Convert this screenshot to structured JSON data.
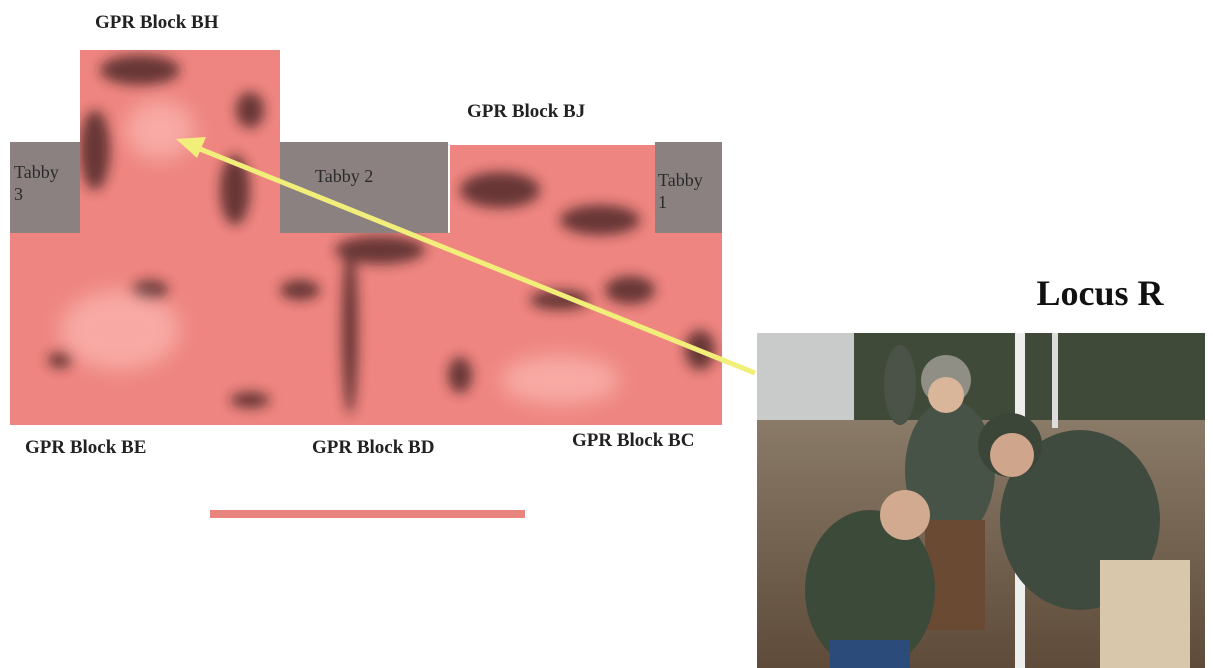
{
  "labels": {
    "block_bh": "GPR Block BH",
    "block_bj": "GPR Block BJ",
    "block_be": "GPR Block BE",
    "block_bd": "GPR Block BD",
    "block_bc": "GPR Block BC"
  },
  "tabby": {
    "t3": {
      "name": "Tabby",
      "number": "3"
    },
    "t2": "Tabby 2",
    "t1": {
      "name": "Tabby",
      "number": "1"
    }
  },
  "photo_title": "Locus R"
}
